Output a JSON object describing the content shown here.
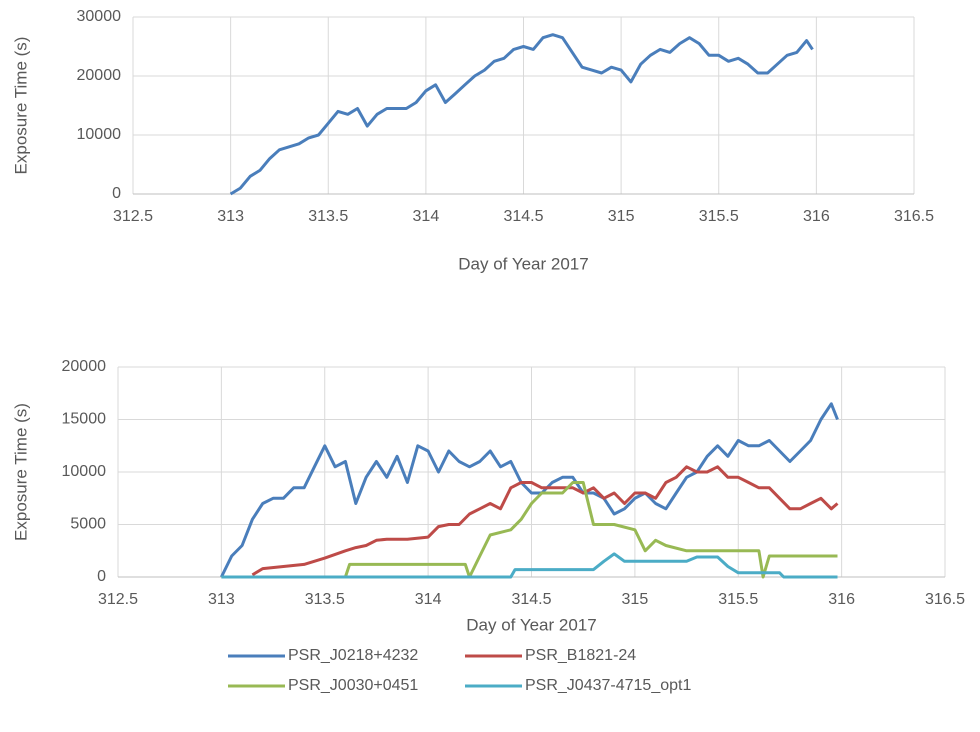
{
  "chart_data": [
    {
      "type": "line",
      "xlabel": "Day of Year 2017",
      "ylabel": "Exposure Time (s)",
      "xlim": [
        312.5,
        316.5
      ],
      "xticks": [
        312.5,
        313,
        313.5,
        314,
        314.5,
        315,
        315.5,
        316,
        316.5
      ],
      "ylim": [
        0,
        30000
      ],
      "yticks": [
        0,
        10000,
        20000,
        30000
      ],
      "grid": true,
      "series": [
        {
          "name": null,
          "color": "#4a7ebb",
          "x": [
            313.0,
            313.05,
            313.1,
            313.15,
            313.2,
            313.25,
            313.3,
            313.35,
            313.4,
            313.45,
            313.5,
            313.55,
            313.6,
            313.65,
            313.7,
            313.75,
            313.8,
            313.85,
            313.9,
            313.95,
            314.0,
            314.05,
            314.1,
            314.15,
            314.2,
            314.25,
            314.3,
            314.35,
            314.4,
            314.45,
            314.5,
            314.55,
            314.6,
            314.65,
            314.7,
            314.75,
            314.8,
            314.85,
            314.9,
            314.95,
            315.0,
            315.05,
            315.1,
            315.15,
            315.2,
            315.25,
            315.3,
            315.35,
            315.4,
            315.45,
            315.5,
            315.55,
            315.6,
            315.65,
            315.7,
            315.75,
            315.8,
            315.85,
            315.9,
            315.95,
            315.98
          ],
          "values": [
            0,
            1000,
            3000,
            4000,
            6000,
            7500,
            8000,
            8500,
            9500,
            10000,
            12000,
            14000,
            13500,
            14500,
            11500,
            13500,
            14500,
            14500,
            14500,
            15500,
            17500,
            18500,
            15500,
            17000,
            18500,
            20000,
            21000,
            22500,
            23000,
            24500,
            25000,
            24500,
            26500,
            27000,
            26500,
            24000,
            21500,
            21000,
            20500,
            21500,
            21000,
            19000,
            22000,
            23500,
            24500,
            24000,
            25500,
            26500,
            25500,
            23500,
            23500,
            22500,
            23000,
            22000,
            20500,
            20500,
            22000,
            23500,
            24000,
            26000,
            24500
          ]
        }
      ]
    },
    {
      "type": "line",
      "xlabel": "Day of Year 2017",
      "ylabel": "Exposure Time (s)",
      "xlim": [
        312.5,
        316.5
      ],
      "xticks": [
        312.5,
        313,
        313.5,
        314,
        314.5,
        315,
        315.5,
        316,
        316.5
      ],
      "ylim": [
        0,
        20000
      ],
      "yticks": [
        0,
        5000,
        10000,
        15000,
        20000
      ],
      "grid": true,
      "legend": "bottom",
      "series": [
        {
          "name": "PSR_J0218+4232",
          "color": "#4a7ebb",
          "x": [
            313.0,
            313.05,
            313.1,
            313.15,
            313.2,
            313.25,
            313.3,
            313.35,
            313.4,
            313.45,
            313.5,
            313.55,
            313.6,
            313.65,
            313.7,
            313.75,
            313.8,
            313.85,
            313.9,
            313.95,
            314.0,
            314.05,
            314.1,
            314.15,
            314.2,
            314.25,
            314.3,
            314.35,
            314.4,
            314.45,
            314.5,
            314.55,
            314.6,
            314.65,
            314.7,
            314.75,
            314.8,
            314.85,
            314.9,
            314.95,
            315.0,
            315.05,
            315.1,
            315.15,
            315.2,
            315.25,
            315.3,
            315.35,
            315.4,
            315.45,
            315.5,
            315.55,
            315.6,
            315.65,
            315.7,
            315.75,
            315.8,
            315.85,
            315.9,
            315.95,
            315.98
          ],
          "values": [
            0,
            2000,
            3000,
            5500,
            7000,
            7500,
            7500,
            8500,
            8500,
            10500,
            12500,
            10500,
            11000,
            7000,
            9500,
            11000,
            9500,
            11500,
            9000,
            12500,
            12000,
            10000,
            12000,
            11000,
            10500,
            11000,
            12000,
            10500,
            11000,
            9000,
            8000,
            8000,
            9000,
            9500,
            9500,
            8000,
            8000,
            7500,
            6000,
            6500,
            7500,
            8000,
            7000,
            6500,
            8000,
            9500,
            10000,
            11500,
            12500,
            11500,
            13000,
            12500,
            12500,
            13000,
            12000,
            11000,
            12000,
            13000,
            15000,
            16500,
            15000
          ]
        },
        {
          "name": "PSR_B1821-24",
          "color": "#be4b48",
          "x": [
            313.15,
            313.2,
            313.3,
            313.4,
            313.5,
            313.6,
            313.65,
            313.7,
            313.75,
            313.8,
            313.9,
            314.0,
            314.05,
            314.1,
            314.15,
            314.2,
            314.25,
            314.3,
            314.35,
            314.4,
            314.45,
            314.5,
            314.55,
            314.6,
            314.65,
            314.7,
            314.75,
            314.8,
            314.85,
            314.9,
            314.95,
            315.0,
            315.05,
            315.1,
            315.15,
            315.2,
            315.25,
            315.3,
            315.35,
            315.4,
            315.45,
            315.5,
            315.55,
            315.6,
            315.65,
            315.7,
            315.75,
            315.8,
            315.85,
            315.9,
            315.95,
            315.98
          ],
          "values": [
            200,
            800,
            1000,
            1200,
            1800,
            2500,
            2800,
            3000,
            3500,
            3600,
            3600,
            3800,
            4800,
            5000,
            5000,
            6000,
            6500,
            7000,
            6500,
            8500,
            9000,
            9000,
            8500,
            8500,
            8500,
            8500,
            8000,
            8500,
            7500,
            8000,
            7000,
            8000,
            8000,
            7500,
            9000,
            9500,
            10500,
            10000,
            10000,
            10500,
            9500,
            9500,
            9000,
            8500,
            8500,
            7500,
            6500,
            6500,
            7000,
            7500,
            6500,
            7000
          ]
        },
        {
          "name": "PSR_J0030+0451",
          "color": "#98b954",
          "x": [
            313.0,
            313.6,
            313.62,
            314.18,
            314.2,
            314.25,
            314.3,
            314.4,
            314.45,
            314.5,
            314.55,
            314.65,
            314.7,
            314.75,
            314.8,
            314.9,
            315.0,
            315.05,
            315.1,
            315.15,
            315.25,
            315.6,
            315.62,
            315.65,
            315.98
          ],
          "values": [
            0,
            0,
            1200,
            1200,
            0,
            2000,
            4000,
            4500,
            5500,
            7000,
            8000,
            8000,
            9000,
            9000,
            5000,
            5000,
            4500,
            2500,
            3500,
            3000,
            2500,
            2500,
            0,
            2000,
            2000
          ]
        },
        {
          "name": "PSR_J0437-4715_opt1",
          "color": "#4bacc6",
          "x": [
            313.0,
            314.4,
            314.42,
            314.8,
            314.85,
            314.9,
            314.95,
            315.25,
            315.3,
            315.4,
            315.45,
            315.5,
            315.7,
            315.72,
            315.98
          ],
          "values": [
            0,
            0,
            700,
            700,
            1500,
            2200,
            1500,
            1500,
            1900,
            1900,
            1000,
            400,
            400,
            0,
            0
          ]
        }
      ]
    }
  ]
}
